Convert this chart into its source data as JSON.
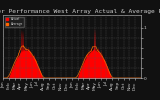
{
  "title": "Solar PV/Inverter Performance West Array Actual & Average Power Output",
  "legend_labels": [
    "Actual",
    "Average"
  ],
  "background_color": "#111111",
  "plot_bg_color": "#111111",
  "grid_color": "#555555",
  "bar_color": "#ff0000",
  "avg_color": "#ff6600",
  "num_points": 700,
  "title_fontsize": 4.5,
  "tick_fontsize": 3.2,
  "text_color": "#cccccc"
}
